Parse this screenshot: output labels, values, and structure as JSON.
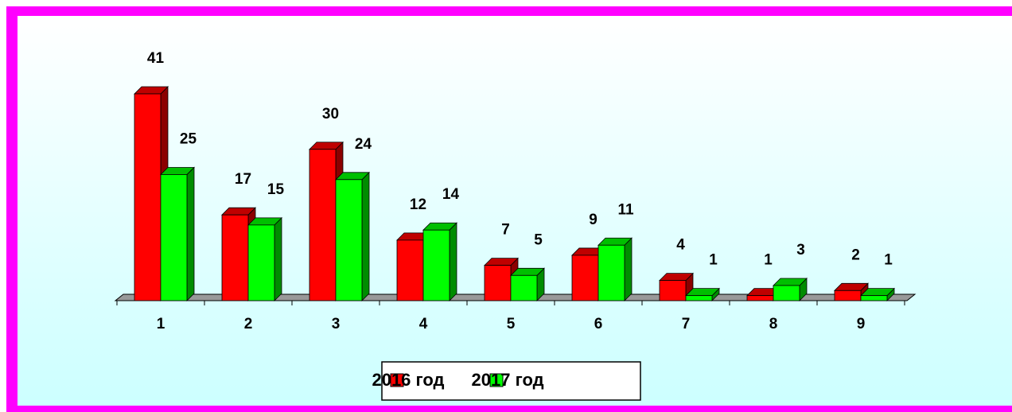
{
  "chart_data": {
    "type": "bar3d",
    "categories": [
      "1",
      "2",
      "3",
      "4",
      "5",
      "6",
      "7",
      "8",
      "9"
    ],
    "series": [
      {
        "name": "2016 год",
        "color": "#ff0000",
        "values": [
          41,
          17,
          30,
          12,
          7,
          9,
          4,
          1,
          2
        ]
      },
      {
        "name": "2017 год",
        "color": "#00ff00",
        "values": [
          25,
          15,
          24,
          14,
          5,
          11,
          1,
          3,
          1
        ]
      }
    ],
    "legend": "bottom"
  }
}
